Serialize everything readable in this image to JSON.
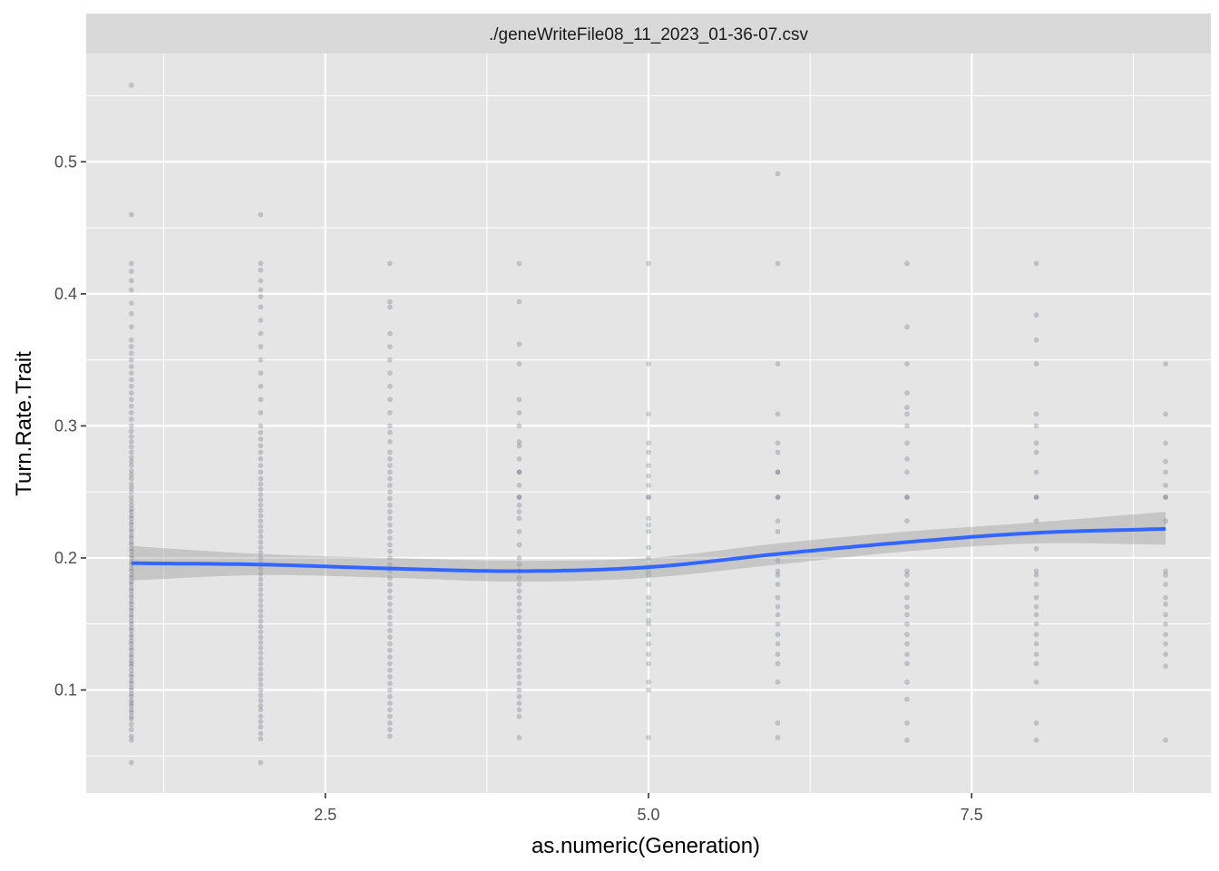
{
  "colors": {
    "panel_bg": "#e5e5e5",
    "grid": "#ffffff",
    "strip_bg": "#d9d9d9",
    "points": "#1a2440",
    "smooth_line": "#3366ff",
    "ribbon": "#999999"
  },
  "chart_data": {
    "type": "scatter",
    "facet_label": "./geneWriteFile08_11_2023_01-36-07.csv",
    "xlabel": "as.numeric(Generation)",
    "ylabel": "Turn.Rate.Trait",
    "xlim": [
      0.65,
      9.35
    ],
    "ylim": [
      0.022,
      0.582
    ],
    "x_ticks": [
      2.5,
      5.0,
      7.5
    ],
    "x_tick_labels": [
      "2.5",
      "5.0",
      "7.5"
    ],
    "y_ticks": [
      0.1,
      0.2,
      0.3,
      0.4,
      0.5
    ],
    "y_tick_labels": [
      "0.1",
      "0.2",
      "0.3",
      "0.4",
      "0.5"
    ],
    "grid": true,
    "point_alpha": 0.18,
    "series": [
      {
        "x": 1,
        "values": [
          0.045,
          0.062,
          0.065,
          0.07,
          0.074,
          0.078,
          0.08,
          0.083,
          0.085,
          0.088,
          0.09,
          0.092,
          0.095,
          0.097,
          0.1,
          0.102,
          0.105,
          0.107,
          0.11,
          0.112,
          0.115,
          0.118,
          0.12,
          0.122,
          0.125,
          0.127,
          0.13,
          0.132,
          0.135,
          0.137,
          0.14,
          0.142,
          0.145,
          0.147,
          0.15,
          0.152,
          0.155,
          0.157,
          0.16,
          0.162,
          0.165,
          0.167,
          0.17,
          0.172,
          0.175,
          0.177,
          0.18,
          0.182,
          0.185,
          0.187,
          0.19,
          0.192,
          0.195,
          0.197,
          0.2,
          0.202,
          0.205,
          0.207,
          0.21,
          0.212,
          0.215,
          0.217,
          0.22,
          0.222,
          0.225,
          0.227,
          0.23,
          0.232,
          0.235,
          0.237,
          0.24,
          0.243,
          0.246,
          0.25,
          0.253,
          0.256,
          0.26,
          0.263,
          0.266,
          0.27,
          0.273,
          0.276,
          0.28,
          0.284,
          0.288,
          0.292,
          0.296,
          0.3,
          0.305,
          0.31,
          0.315,
          0.32,
          0.325,
          0.33,
          0.335,
          0.34,
          0.345,
          0.35,
          0.355,
          0.36,
          0.365,
          0.375,
          0.385,
          0.393,
          0.403,
          0.41,
          0.417,
          0.423,
          0.46,
          0.558
        ]
      },
      {
        "x": 2,
        "values": [
          0.045,
          0.063,
          0.067,
          0.072,
          0.076,
          0.08,
          0.085,
          0.088,
          0.092,
          0.096,
          0.1,
          0.104,
          0.108,
          0.112,
          0.116,
          0.12,
          0.124,
          0.128,
          0.132,
          0.136,
          0.14,
          0.144,
          0.148,
          0.152,
          0.156,
          0.16,
          0.164,
          0.168,
          0.172,
          0.176,
          0.18,
          0.184,
          0.188,
          0.192,
          0.196,
          0.2,
          0.204,
          0.208,
          0.212,
          0.216,
          0.22,
          0.224,
          0.228,
          0.232,
          0.236,
          0.24,
          0.244,
          0.248,
          0.252,
          0.256,
          0.26,
          0.265,
          0.27,
          0.275,
          0.28,
          0.285,
          0.29,
          0.295,
          0.3,
          0.31,
          0.32,
          0.33,
          0.34,
          0.35,
          0.36,
          0.37,
          0.38,
          0.39,
          0.398,
          0.403,
          0.41,
          0.418,
          0.423,
          0.46
        ]
      },
      {
        "x": 3,
        "values": [
          0.065,
          0.07,
          0.075,
          0.08,
          0.085,
          0.09,
          0.095,
          0.1,
          0.105,
          0.11,
          0.115,
          0.12,
          0.125,
          0.13,
          0.135,
          0.14,
          0.145,
          0.15,
          0.155,
          0.16,
          0.165,
          0.17,
          0.175,
          0.18,
          0.185,
          0.19,
          0.195,
          0.2,
          0.205,
          0.21,
          0.215,
          0.22,
          0.225,
          0.23,
          0.235,
          0.24,
          0.245,
          0.25,
          0.255,
          0.26,
          0.265,
          0.27,
          0.275,
          0.28,
          0.288,
          0.295,
          0.3,
          0.31,
          0.32,
          0.33,
          0.34,
          0.35,
          0.36,
          0.37,
          0.39,
          0.394,
          0.423
        ]
      },
      {
        "x": 4,
        "values": [
          0.064,
          0.08,
          0.085,
          0.09,
          0.095,
          0.1,
          0.105,
          0.11,
          0.115,
          0.12,
          0.125,
          0.13,
          0.135,
          0.14,
          0.145,
          0.15,
          0.155,
          0.16,
          0.165,
          0.17,
          0.175,
          0.18,
          0.185,
          0.19,
          0.19,
          0.195,
          0.2,
          0.21,
          0.22,
          0.23,
          0.235,
          0.24,
          0.246,
          0.246,
          0.255,
          0.265,
          0.265,
          0.275,
          0.285,
          0.288,
          0.3,
          0.31,
          0.32,
          0.347,
          0.362,
          0.394,
          0.423
        ]
      },
      {
        "x": 5,
        "values": [
          0.064,
          0.1,
          0.106,
          0.12,
          0.127,
          0.135,
          0.142,
          0.15,
          0.153,
          0.16,
          0.165,
          0.17,
          0.18,
          0.187,
          0.19,
          0.194,
          0.2,
          0.208,
          0.22,
          0.225,
          0.23,
          0.246,
          0.246,
          0.255,
          0.262,
          0.27,
          0.28,
          0.287,
          0.309,
          0.347,
          0.423
        ]
      },
      {
        "x": 6,
        "values": [
          0.064,
          0.075,
          0.106,
          0.12,
          0.127,
          0.135,
          0.142,
          0.15,
          0.157,
          0.163,
          0.17,
          0.18,
          0.187,
          0.19,
          0.198,
          0.228,
          0.22,
          0.246,
          0.246,
          0.265,
          0.265,
          0.28,
          0.287,
          0.309,
          0.347,
          0.423,
          0.491
        ]
      },
      {
        "x": 7,
        "values": [
          0.062,
          0.075,
          0.093,
          0.106,
          0.12,
          0.127,
          0.135,
          0.142,
          0.15,
          0.157,
          0.163,
          0.17,
          0.18,
          0.187,
          0.19,
          0.228,
          0.246,
          0.246,
          0.265,
          0.275,
          0.287,
          0.3,
          0.309,
          0.314,
          0.325,
          0.347,
          0.375,
          0.423
        ]
      },
      {
        "x": 8,
        "values": [
          0.062,
          0.075,
          0.106,
          0.12,
          0.127,
          0.135,
          0.142,
          0.15,
          0.157,
          0.163,
          0.17,
          0.18,
          0.187,
          0.19,
          0.207,
          0.228,
          0.246,
          0.246,
          0.265,
          0.28,
          0.287,
          0.3,
          0.309,
          0.347,
          0.365,
          0.384,
          0.423
        ]
      },
      {
        "x": 9,
        "values": [
          0.062,
          0.118,
          0.127,
          0.135,
          0.142,
          0.15,
          0.157,
          0.165,
          0.17,
          0.18,
          0.187,
          0.19,
          0.228,
          0.246,
          0.246,
          0.255,
          0.265,
          0.273,
          0.287,
          0.309,
          0.347
        ]
      }
    ],
    "smooth": {
      "method": "loess",
      "x": [
        1,
        2,
        3,
        4,
        5,
        6,
        7,
        8,
        9
      ],
      "y": [
        0.196,
        0.195,
        0.192,
        0.19,
        0.193,
        0.203,
        0.212,
        0.219,
        0.222
      ],
      "lower": [
        0.183,
        0.187,
        0.185,
        0.182,
        0.185,
        0.195,
        0.205,
        0.211,
        0.21
      ],
      "upper": [
        0.209,
        0.203,
        0.2,
        0.198,
        0.2,
        0.211,
        0.22,
        0.227,
        0.235
      ]
    }
  }
}
